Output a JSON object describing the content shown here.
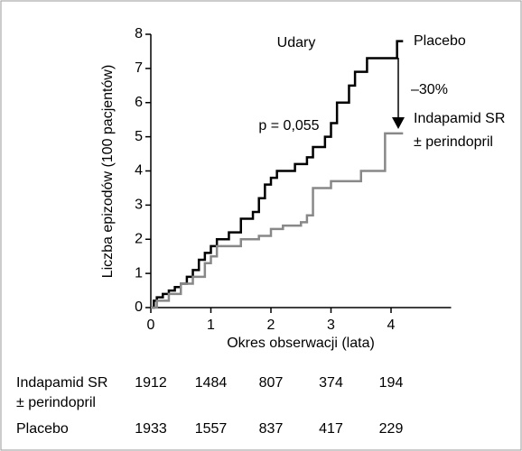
{
  "chart_data": {
    "type": "step",
    "title": "Udary",
    "annotations": {
      "p_value": "p = 0,055",
      "reduction": "–30%"
    },
    "x_label": "Okres obserwacji (lata)",
    "y_label": "Liczba epizodów (100 pacjentów)",
    "xlim": [
      0,
      5
    ],
    "xticks": [
      0,
      1,
      2,
      3,
      4
    ],
    "ylim": [
      0,
      8
    ],
    "yticks": [
      0,
      1,
      2,
      3,
      4,
      5,
      6,
      7,
      8
    ],
    "series": [
      {
        "name": [
          "Placebo"
        ],
        "color": "#000000",
        "x": [
          0,
          0.05,
          0.1,
          0.2,
          0.3,
          0.4,
          0.5,
          0.6,
          0.7,
          0.8,
          0.9,
          1.0,
          1.1,
          1.3,
          1.5,
          1.7,
          1.8,
          1.9,
          2.0,
          2.1,
          2.4,
          2.6,
          2.7,
          2.9,
          3.0,
          3.1,
          3.3,
          3.4,
          3.6,
          4.1,
          4.2
        ],
        "values": [
          0,
          0.2,
          0.3,
          0.4,
          0.5,
          0.6,
          0.7,
          0.9,
          1.1,
          1.4,
          1.6,
          1.8,
          2.0,
          2.2,
          2.6,
          2.8,
          3.2,
          3.6,
          3.8,
          4.0,
          4.2,
          4.4,
          4.7,
          5.0,
          5.4,
          6.0,
          6.5,
          6.9,
          7.3,
          7.8,
          7.8
        ]
      },
      {
        "name": [
          "Indapamid SR",
          "± perindopril"
        ],
        "color": "#888888",
        "x": [
          0,
          0.1,
          0.3,
          0.5,
          0.7,
          0.9,
          1.0,
          1.1,
          1.5,
          1.8,
          2.0,
          2.2,
          2.5,
          2.6,
          2.7,
          3.0,
          3.5,
          3.9,
          4.2
        ],
        "values": [
          0,
          0.2,
          0.4,
          0.7,
          0.9,
          1.3,
          1.5,
          1.8,
          2.0,
          2.1,
          2.3,
          2.4,
          2.5,
          2.7,
          3.5,
          3.7,
          4.0,
          5.1,
          5.1
        ]
      }
    ],
    "at_risk": [
      {
        "label": [
          "Indapamid SR",
          "± perindopril"
        ],
        "values": [
          1912,
          1484,
          807,
          374,
          194
        ]
      },
      {
        "label": [
          "Placebo"
        ],
        "values": [
          1933,
          1557,
          837,
          417,
          229
        ]
      }
    ]
  }
}
